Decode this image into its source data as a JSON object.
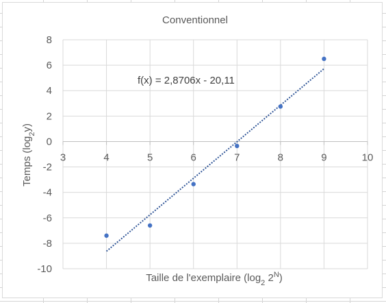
{
  "chart_data": {
    "type": "scatter",
    "title": "Conventionnel",
    "xlabel_main": "Taille de l'exemplaire (log",
    "xlabel_sub": "2",
    "xlabel_mid": " 2",
    "xlabel_sup": "N",
    "xlabel_end": ")",
    "ylabel_main": "Temps (log",
    "ylabel_sub": "2",
    "ylabel_end": "y)",
    "xlim": [
      3,
      10
    ],
    "ylim": [
      -10,
      8
    ],
    "xticks": [
      3,
      4,
      5,
      6,
      7,
      8,
      9,
      10
    ],
    "yticks": [
      -10,
      -8,
      -6,
      -4,
      -2,
      0,
      2,
      4,
      6,
      8
    ],
    "grid": true,
    "points": [
      {
        "x": 4,
        "y": -7.4
      },
      {
        "x": 5,
        "y": -6.6
      },
      {
        "x": 6,
        "y": -3.35
      },
      {
        "x": 7,
        "y": -0.35
      },
      {
        "x": 8,
        "y": 2.75
      },
      {
        "x": 9,
        "y": 6.5
      }
    ],
    "trendline": {
      "slope": 2.8706,
      "intercept": -20.11,
      "x_from": 4,
      "x_to": 9
    },
    "equation": "f(x) = 2,8706x - 20,11",
    "marker_color": "#4472c4",
    "trend_color": "#2f5597"
  }
}
